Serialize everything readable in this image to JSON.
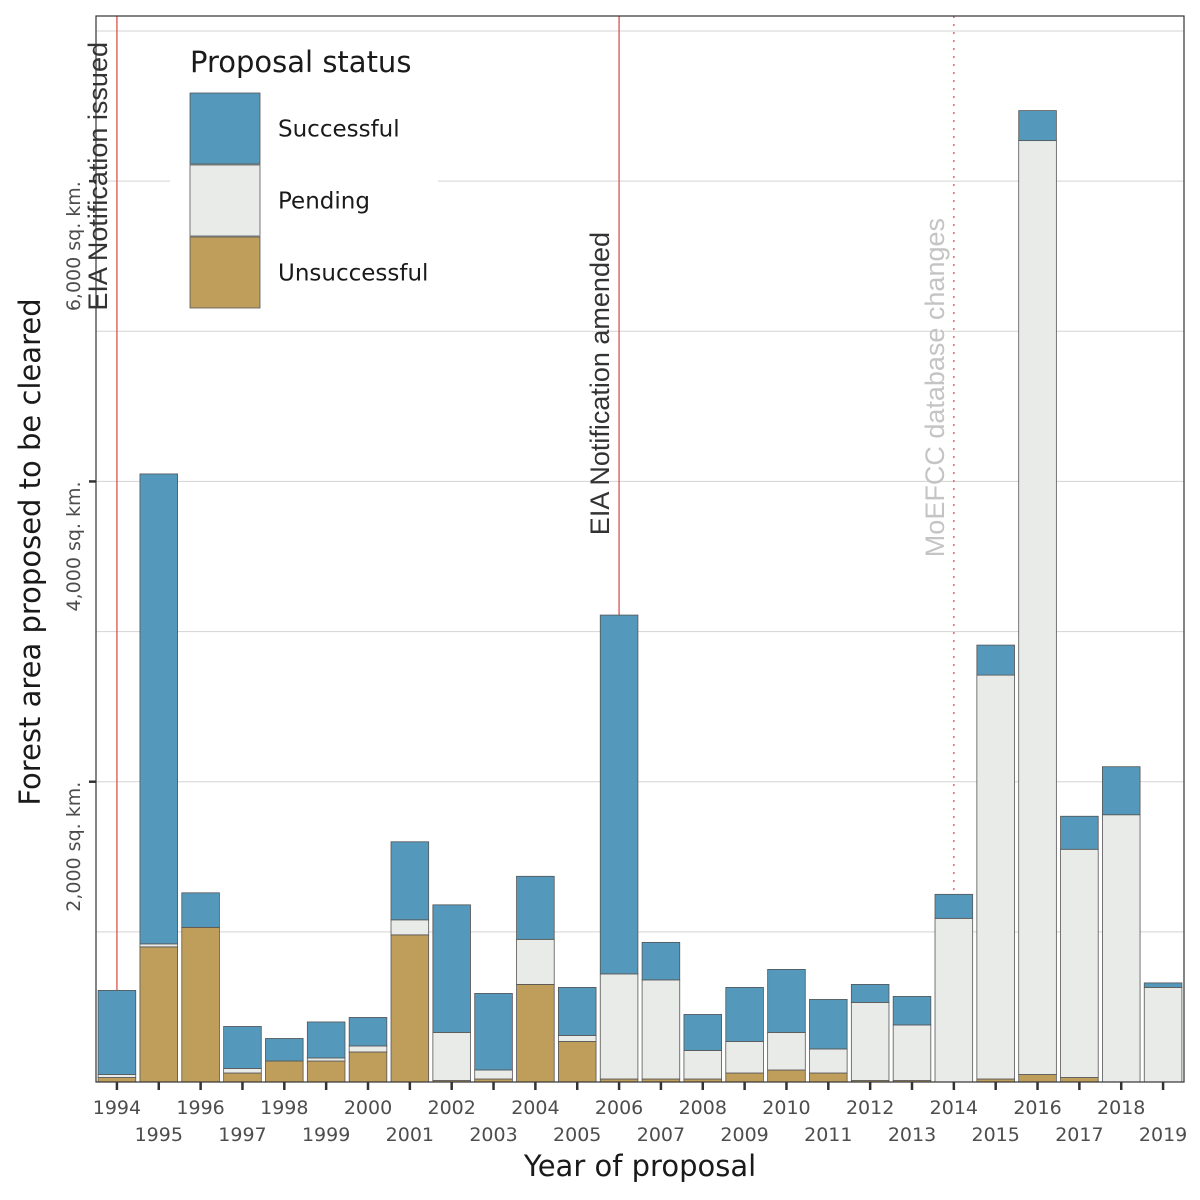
{
  "chart_data": {
    "type": "bar",
    "stacked": true,
    "title": "",
    "xlabel": "Year of proposal",
    "ylabel": "Forest area proposed to be cleared",
    "categories": [
      "1994",
      "1995",
      "1996",
      "1997",
      "1998",
      "1999",
      "2000",
      "2001",
      "2002",
      "2003",
      "2004",
      "2005",
      "2006",
      "2007",
      "2008",
      "2009",
      "2010",
      "2011",
      "2012",
      "2013",
      "2014",
      "2015",
      "2016",
      "2017",
      "2018",
      "2019"
    ],
    "series": [
      {
        "name": "Unsuccessful",
        "color": "#bf9e5c",
        "values": [
          30,
          900,
          1030,
          60,
          140,
          140,
          200,
          980,
          10,
          20,
          650,
          270,
          20,
          20,
          20,
          60,
          80,
          60,
          10,
          10,
          0,
          20,
          50,
          30,
          0,
          0
        ]
      },
      {
        "name": "Pending",
        "color": "#e9ebe8",
        "values": [
          20,
          20,
          0,
          30,
          0,
          20,
          40,
          100,
          320,
          60,
          300,
          40,
          700,
          660,
          190,
          210,
          250,
          160,
          520,
          370,
          1090,
          2690,
          6220,
          1520,
          1780,
          630
        ]
      },
      {
        "name": "Successful",
        "color": "#5498bb",
        "values": [
          560,
          3130,
          230,
          280,
          150,
          240,
          190,
          520,
          850,
          510,
          420,
          320,
          2390,
          250,
          240,
          360,
          420,
          330,
          120,
          190,
          160,
          200,
          200,
          220,
          320,
          30
        ]
      }
    ],
    "y_ticks": [
      2000,
      4000,
      6000
    ],
    "y_tick_labels": [
      "2,000 sq. km.",
      "4,000 sq. km.",
      "6,000 sq. km."
    ],
    "ylim": [
      0,
      7100
    ],
    "grid": true,
    "legend": {
      "title": "Proposal status",
      "order": [
        "Successful",
        "Pending",
        "Unsuccessful"
      ],
      "position": "top-left"
    },
    "annotations": [
      {
        "x": "1994",
        "label": "EIA Notification issued",
        "style": "solid",
        "color": "#d9534f",
        "text_color": "#333333"
      },
      {
        "x": "2006",
        "label": "EIA Notification amended",
        "style": "solid",
        "color": "#d9534f",
        "text_color": "#333333"
      },
      {
        "x": "2014",
        "label": "MoEFCC database changes",
        "style": "dotted",
        "color": "#d9534f",
        "text_color": "#c4c4c4"
      }
    ]
  }
}
